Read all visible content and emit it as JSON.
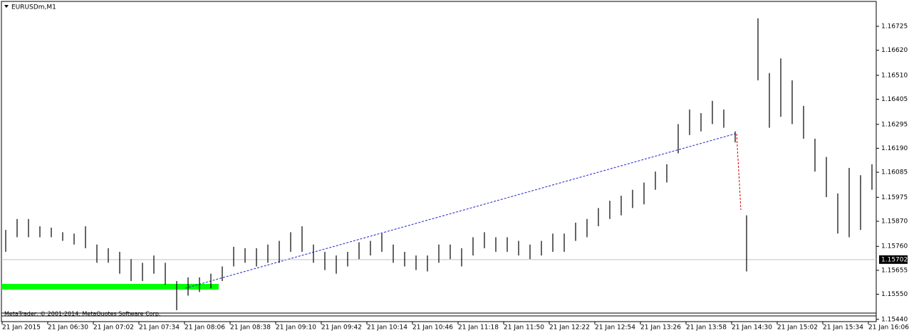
{
  "chart_data": {
    "type": "range",
    "title": "EURUSDm,M1",
    "footer": "MetaTrader, © 2001-2014, MetaQuotes Software Corp.",
    "color": "#000000",
    "current_price": 1.15702,
    "ylim": [
      1.1543,
      1.16834
    ],
    "yticks": [
      1.16725,
      {
        "value": 1.1662,
        "label": "1.16620"
      },
      {
        "value": 1.1651,
        "label": "1.16510"
      },
      1.16405,
      1.16295,
      {
        "value": 1.1619,
        "label": "1.16190"
      },
      1.16085,
      1.15975,
      {
        "value": 1.1587,
        "label": "1.15870"
      },
      {
        "value": 1.1576,
        "label": "1.15760"
      },
      1.15655,
      {
        "value": 1.1555,
        "label": "1.15550"
      },
      {
        "value": 1.1544,
        "label": "1.15440"
      }
    ],
    "x_labels": [
      "21 Jan 2015",
      "21 Jan 06:30",
      "21 Jan 07:02",
      "21 Jan 07:34",
      "21 Jan 08:06",
      "21 Jan 08:38",
      "21 Jan 09:10",
      "21 Jan 09:42",
      "21 Jan 10:14",
      "21 Jan 10:46",
      "21 Jan 11:18",
      "21 Jan 11:50",
      "21 Jan 12:22",
      "21 Jan 12:54",
      "21 Jan 13:26",
      "21 Jan 13:58",
      "21 Jan 14:30",
      "21 Jan 15:02",
      "21 Jan 15:34",
      "21 Jan 16:06"
    ],
    "high": [
      1.15832,
      1.1588,
      1.1588,
      1.15848,
      1.15842,
      1.15822,
      1.15816,
      1.15848,
      1.15768,
      1.15752,
      1.15736,
      1.15704,
      1.15688,
      1.1572,
      1.15688,
      1.15608,
      1.15624,
      1.15624,
      1.1564,
      1.15672,
      1.15758,
      1.15752,
      1.15752,
      1.15768,
      1.15784,
      1.15822,
      1.15848,
      1.15768,
      1.15736,
      1.1572,
      1.15736,
      1.15778,
      1.15784,
      1.15816,
      1.15768,
      1.15736,
      1.1572,
      1.1572,
      1.15768,
      1.15768,
      1.15752,
      1.158,
      1.15822,
      1.158,
      1.158,
      1.15784,
      1.15768,
      1.15784,
      1.15816,
      1.15816,
      1.15864,
      1.1588,
      1.15928,
      1.1596,
      1.15982,
      1.16008,
      1.1604,
      1.16088,
      1.1612,
      1.16296,
      1.1636,
      1.16344,
      1.16398,
      1.1636,
      1.16264,
      1.15896,
      1.1676,
      1.1652,
      1.16584,
      1.16488,
      1.16376,
      1.16232,
      1.16152,
      1.15992,
      1.16104,
      1.16072,
      1.1612
    ],
    "low": [
      1.15736,
      1.158,
      1.158,
      1.158,
      1.158,
      1.15784,
      1.15768,
      1.15752,
      1.15688,
      1.15688,
      1.1564,
      1.15608,
      1.15608,
      1.1564,
      1.15592,
      1.1548,
      1.15544,
      1.1556,
      1.15576,
      1.15608,
      1.15672,
      1.15688,
      1.15672,
      1.15688,
      1.15688,
      1.15736,
      1.15736,
      1.15688,
      1.15656,
      1.1564,
      1.15672,
      1.15704,
      1.1572,
      1.15736,
      1.15688,
      1.15672,
      1.15656,
      1.1565,
      1.15688,
      1.15704,
      1.15672,
      1.1572,
      1.15752,
      1.15736,
      1.15736,
      1.1572,
      1.15704,
      1.1572,
      1.15736,
      1.15736,
      1.15784,
      1.158,
      1.15848,
      1.1588,
      1.15896,
      1.15928,
      1.15944,
      1.16008,
      1.1604,
      1.16168,
      1.16248,
      1.16264,
      1.16296,
      1.1628,
      1.16216,
      1.1565,
      1.16488,
      1.1628,
      1.16328,
      1.16296,
      1.16232,
      1.16088,
      1.15976,
      1.15816,
      1.158,
      1.15832,
      1.16008
    ]
  }
}
